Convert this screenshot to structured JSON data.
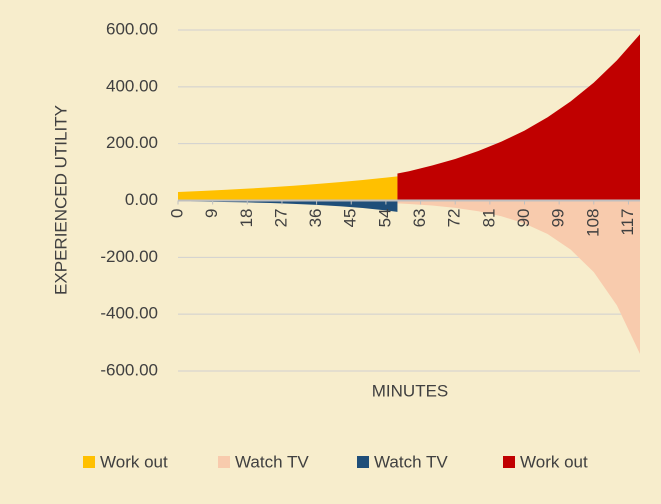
{
  "chart_data": {
    "type": "area",
    "ylabel": "EXPERIENCED UTILITY",
    "xlabel": "MINUTES",
    "x": [
      0,
      6,
      12,
      18,
      24,
      30,
      36,
      42,
      48,
      54,
      57,
      60,
      66,
      72,
      78,
      84,
      90,
      96,
      102,
      108,
      114,
      120
    ],
    "series": [
      {
        "name": "Work out",
        "color": "#ffc000",
        "values": [
          30,
          33.5,
          37.4,
          41.7,
          46.5,
          51.9,
          57.9,
          64.6,
          72.1,
          80.4,
          85,
          null,
          null,
          null,
          null,
          null,
          null,
          null,
          null,
          null,
          null,
          null
        ]
      },
      {
        "name": "Watch TV",
        "color": "#f8cbad",
        "values": [
          null,
          null,
          null,
          null,
          null,
          null,
          null,
          null,
          null,
          null,
          -10,
          -12.1,
          -17.7,
          -25.9,
          -37.8,
          -55.3,
          -80.8,
          -118,
          -173,
          -252,
          -369,
          -540
        ]
      },
      {
        "name": "Watch TV",
        "color": "#1f4e79",
        "values": [
          -3,
          -3.9,
          -5.2,
          -6.8,
          -8.9,
          -11.7,
          -15.4,
          -20.2,
          -26.5,
          -34.8,
          -40,
          null,
          null,
          null,
          null,
          null,
          null,
          null,
          null,
          null,
          null,
          null
        ]
      },
      {
        "name": "Work out",
        "color": "#c00000",
        "values": [
          null,
          null,
          null,
          null,
          null,
          null,
          null,
          null,
          null,
          null,
          95,
          103,
          123,
          146,
          174,
          207,
          246,
          293,
          349,
          415,
          493,
          585
        ]
      }
    ],
    "xlim": [
      0,
      120
    ],
    "xticks": [
      0,
      9,
      18,
      27,
      36,
      45,
      54,
      63,
      72,
      81,
      90,
      99,
      108,
      117
    ],
    "ylim": [
      -600,
      600
    ],
    "yticks": [
      {
        "value": -600,
        "label": "-600.00"
      },
      {
        "value": -400,
        "label": "-400.00"
      },
      {
        "value": -200,
        "label": "-200.00"
      },
      {
        "value": 0,
        "label": "0.00"
      },
      {
        "value": 200,
        "label": "200.00"
      },
      {
        "value": 400,
        "label": "400.00"
      },
      {
        "value": 600,
        "label": "600.00"
      }
    ],
    "grid": true,
    "legend": "bottom"
  }
}
